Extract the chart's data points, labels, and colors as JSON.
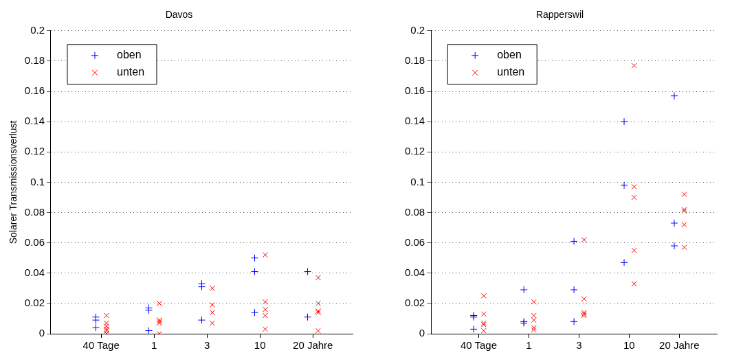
{
  "chart_data": [
    {
      "type": "scatter",
      "title": "Davos",
      "ylabel": "Solarer Transmissionsverlust",
      "categories": [
        "40 Tage",
        "1",
        "3",
        "10",
        "20 Jahre"
      ],
      "ylim": [
        0,
        0.2
      ],
      "yticks": [
        0,
        0.02,
        0.04,
        0.06,
        0.08,
        0.1,
        0.12,
        0.14,
        0.16,
        0.18,
        0.2
      ],
      "grid": "y",
      "legend": "top left",
      "series": [
        {
          "name": "oben",
          "color": "#0000ff",
          "marker": "plus",
          "x": [
            "40 Tage",
            "40 Tage",
            "40 Tage",
            "1",
            "1",
            "1",
            "3",
            "3",
            "3",
            "10",
            "10",
            "10",
            "20 Jahre",
            "20 Jahre"
          ],
          "values": [
            0.011,
            0.009,
            0.004,
            0.017,
            0.0155,
            0.002,
            0.033,
            0.031,
            0.009,
            0.05,
            0.041,
            0.014,
            0.041,
            0.011
          ]
        },
        {
          "name": "unten",
          "color": "#ff0000",
          "marker": "cross",
          "x": [
            "40 Tage",
            "40 Tage",
            "40 Tage",
            "40 Tage",
            "40 Tage",
            "40 Tage",
            "1",
            "1",
            "1",
            "1",
            "1",
            "3",
            "3",
            "3",
            "3",
            "10",
            "10",
            "10",
            "10",
            "10",
            "20 Jahre",
            "20 Jahre",
            "20 Jahre",
            "20 Jahre",
            "20 Jahre"
          ],
          "values": [
            0.012,
            0.007,
            0.005,
            0.003,
            0.002,
            0,
            0.02,
            0.009,
            0.008,
            0.007,
            0,
            0.03,
            0.019,
            0.014,
            0.007,
            0.052,
            0.021,
            0.016,
            0.012,
            0.003,
            0.037,
            0.02,
            0.015,
            0.014,
            0.002
          ]
        }
      ]
    },
    {
      "type": "scatter",
      "title": "Rapperswil",
      "categories": [
        "40 Tage",
        "1",
        "3",
        "10",
        "20 Jahre"
      ],
      "ylim": [
        0,
        0.2
      ],
      "yticks": [
        0,
        0.02,
        0.04,
        0.06,
        0.08,
        0.1,
        0.12,
        0.14,
        0.16,
        0.18,
        0.2
      ],
      "grid": "y",
      "legend": "top left",
      "series": [
        {
          "name": "oben",
          "color": "#0000ff",
          "marker": "plus",
          "x": [
            "40 Tage",
            "40 Tage",
            "40 Tage",
            "1",
            "1",
            "1",
            "3",
            "3",
            "3",
            "10",
            "10",
            "10",
            "20 Jahre",
            "20 Jahre",
            "20 Jahre"
          ],
          "values": [
            0.012,
            0.011,
            0.003,
            0.029,
            0.008,
            0.007,
            0.061,
            0.029,
            0.008,
            0.14,
            0.098,
            0.047,
            0.157,
            0.073,
            0.058
          ]
        },
        {
          "name": "unten",
          "color": "#ff0000",
          "marker": "cross",
          "x": [
            "40 Tage",
            "40 Tage",
            "40 Tage",
            "40 Tage",
            "40 Tage",
            "1",
            "1",
            "1",
            "1",
            "1",
            "3",
            "3",
            "3",
            "3",
            "3",
            "10",
            "10",
            "10",
            "10",
            "10",
            "20 Jahre",
            "20 Jahre",
            "20 Jahre",
            "20 Jahre",
            "20 Jahre"
          ],
          "values": [
            0.025,
            0.013,
            0.007,
            0.006,
            0.002,
            0.021,
            0.012,
            0.009,
            0.004,
            0.0025,
            0.062,
            0.023,
            0.014,
            0.013,
            0.012,
            0.177,
            0.097,
            0.09,
            0.055,
            0.033,
            0.092,
            0.082,
            0.081,
            0.072,
            0.057
          ]
        }
      ]
    }
  ]
}
